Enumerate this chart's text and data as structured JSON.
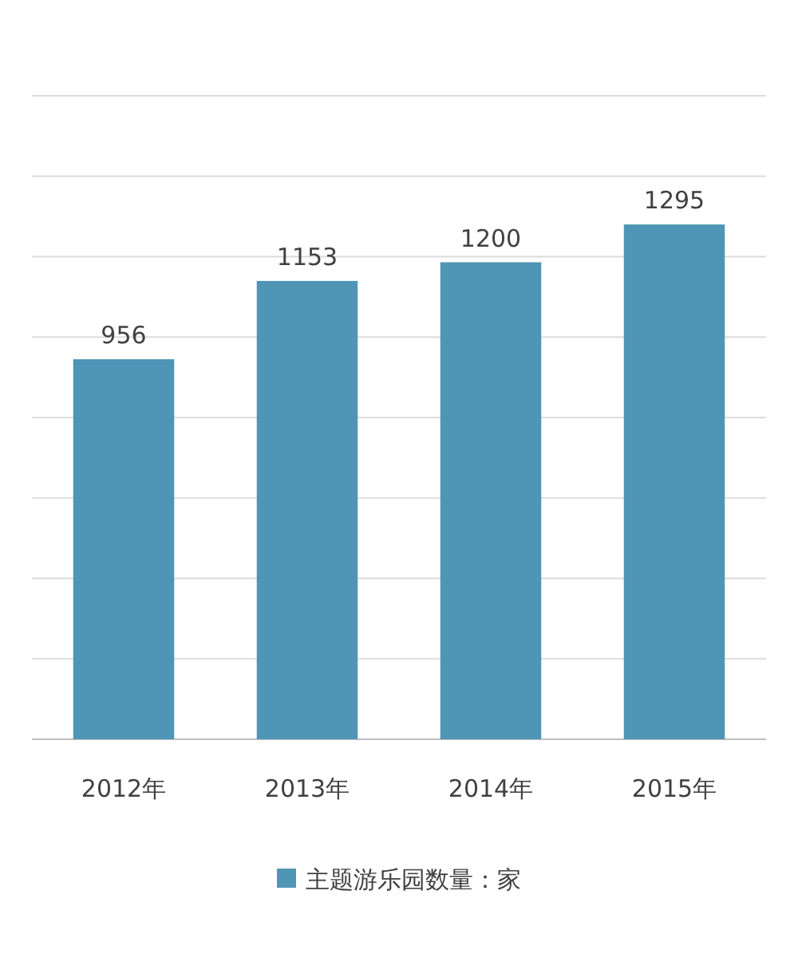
{
  "chart_data": {
    "type": "bar",
    "categories": [
      "2012年",
      "2013年",
      "2014年",
      "2015年"
    ],
    "series": [
      {
        "name": "主题游乐园数量：家",
        "color": "#4f95b5",
        "values": [
          956,
          1153,
          1200,
          1295
        ]
      }
    ],
    "data_labels": true,
    "grid": "y",
    "legend": "bottom"
  }
}
